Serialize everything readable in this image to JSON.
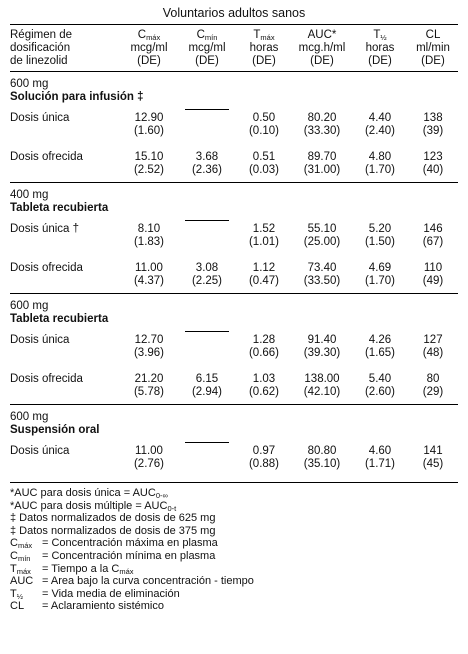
{
  "title": "Voluntarios adultos sanos",
  "header": [
    {
      "lines": [
        "Régimen de",
        "dosificación",
        "de linezolid"
      ]
    },
    {
      "symbol": "C",
      "sub": "máx",
      "lines": [
        "mcg/ml",
        "(DE)"
      ]
    },
    {
      "symbol": "C",
      "sub": "mín",
      "lines": [
        "mcg/ml",
        "(DE)"
      ]
    },
    {
      "symbol": "T",
      "sub": "máx",
      "lines": [
        "horas",
        "(DE)"
      ]
    },
    {
      "symbol": "AUC*",
      "lines": [
        "mcg.h/ml",
        "(DE)"
      ]
    },
    {
      "symbol": "T",
      "sub": "½",
      "lines": [
        "horas",
        "(DE)"
      ]
    },
    {
      "symbol": "CL",
      "lines": [
        "ml/min",
        "(DE)"
      ]
    }
  ],
  "groups": [
    {
      "dose": "600 mg",
      "form": "Solución para infusión ‡",
      "rows": [
        {
          "label": "Dosis única",
          "cells": [
            [
              "12.90",
              "(1.60)"
            ],
            null,
            [
              "0.50",
              "(0.10)"
            ],
            [
              "80.20",
              "(33.30)"
            ],
            [
              "4.40",
              "(2.40)"
            ],
            [
              "138",
              "(39)"
            ]
          ]
        },
        {
          "label": "Dosis ofrecida",
          "cells": [
            [
              "15.10",
              "(2.52)"
            ],
            [
              "3.68",
              "(2.36)"
            ],
            [
              "0.51",
              "(0.03)"
            ],
            [
              "89.70",
              "(31.00)"
            ],
            [
              "4.80",
              "(1.70)"
            ],
            [
              "123",
              "(40)"
            ]
          ]
        }
      ]
    },
    {
      "dose": "400 mg",
      "form": "Tableta recubierta",
      "rows": [
        {
          "label": "Dosis única †",
          "cells": [
            [
              "8.10",
              "(1.83)"
            ],
            null,
            [
              "1.52",
              "(1.01)"
            ],
            [
              "55.10",
              "(25.00)"
            ],
            [
              "5.20",
              "(1.50)"
            ],
            [
              "146",
              "(67)"
            ]
          ]
        },
        {
          "label": "Dosis ofrecida",
          "cells": [
            [
              "11.00",
              "(4.37)"
            ],
            [
              "3.08",
              "(2.25)"
            ],
            [
              "1.12",
              "(0.47)"
            ],
            [
              "73.40",
              "(33.50)"
            ],
            [
              "4.69",
              "(1.70)"
            ],
            [
              "110",
              "(49)"
            ]
          ]
        }
      ]
    },
    {
      "dose": "600 mg",
      "form": "Tableta recubierta",
      "rows": [
        {
          "label": "Dosis única",
          "cells": [
            [
              "12.70",
              "(3.96)"
            ],
            null,
            [
              "1.28",
              "(0.66)"
            ],
            [
              "91.40",
              "(39.30)"
            ],
            [
              "4.26",
              "(1.65)"
            ],
            [
              "127",
              "(48)"
            ]
          ]
        },
        {
          "label": "Dosis ofrecida",
          "cells": [
            [
              "21.20",
              "(5.78)"
            ],
            [
              "6.15",
              "(2.94)"
            ],
            [
              "1.03",
              "(0.62)"
            ],
            [
              "138.00",
              "(42.10)"
            ],
            [
              "5.40",
              "(2.60)"
            ],
            [
              "80",
              "(29)"
            ]
          ]
        }
      ]
    },
    {
      "dose": "600 mg",
      "form": "Suspensión oral",
      "rows": [
        {
          "label": "Dosis única",
          "cells": [
            [
              "11.00",
              "(2.76)"
            ],
            null,
            [
              "0.97",
              "(0.88)"
            ],
            [
              "80.80",
              "(35.10)"
            ],
            [
              "4.60",
              "(1.71)"
            ],
            [
              "141",
              "(45)"
            ]
          ]
        }
      ]
    }
  ],
  "footnotes": {
    "notes": [
      [
        {
          "text": "*AUC para dosis única = AUC"
        },
        {
          "sub": "0-∞"
        }
      ],
      [
        {
          "text": "*AUC para dosis múltiple = AUC"
        },
        {
          "sub": "0-t"
        }
      ],
      [
        {
          "text": "‡ Datos normalizados de dosis de 625 mg"
        }
      ],
      [
        {
          "text": "‡ Datos normalizados de dosis de 375 mg"
        }
      ]
    ],
    "definitions": [
      {
        "term": "C",
        "term_sub": "máx",
        "text": "= Concentración máxima en plasma"
      },
      {
        "term": "C",
        "term_sub": "mín",
        "text": "= Concentración mínima en plasma"
      },
      {
        "term": "T",
        "term_sub": "máx",
        "text": "= Tiempo a la C",
        "text_sub": "máx"
      },
      {
        "term": "AUC",
        "text": "= Area bajo la curva concentración - tiempo"
      },
      {
        "term": "T",
        "term_sub": "½",
        "text": "= Vida media de eliminación"
      },
      {
        "term": "CL",
        "text": "= Aclaramiento sistémico"
      }
    ]
  }
}
